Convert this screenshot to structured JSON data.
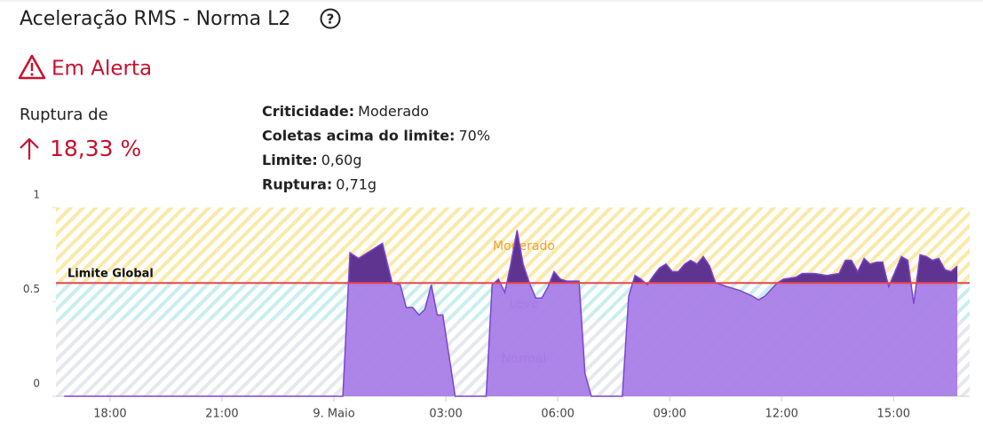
{
  "title": "Aceleração RMS - Norma L2",
  "status": "Em Alerta",
  "rupture": {
    "label": "Ruptura de",
    "value": "18,33 %"
  },
  "details": [
    {
      "label": "Criticidade:",
      "value": "Moderado"
    },
    {
      "label": "Coletas acima do limite:",
      "value": "70%"
    },
    {
      "label": "Limite:",
      "value": "0,60g"
    },
    {
      "label": "Ruptura:",
      "value": "0,71g"
    }
  ],
  "chart_data": {
    "type": "area",
    "x": [
      16.77,
      24.24,
      24.43,
      24.66,
      25.3,
      25.56,
      25.78,
      25.94,
      26.11,
      26.28,
      26.44,
      26.61,
      26.77,
      26.92,
      27.25,
      28.08,
      28.24,
      28.41,
      28.58,
      28.74,
      28.91,
      29.07,
      29.24,
      29.41,
      29.57,
      29.74,
      29.9,
      30.07,
      30.24,
      30.4,
      30.57,
      30.73,
      30.9,
      31.73,
      31.9,
      32.07,
      32.23,
      32.4,
      32.57,
      32.73,
      32.9,
      33.07,
      33.23,
      33.4,
      33.56,
      33.73,
      33.9,
      34.07,
      34.23,
      34.55,
      34.88,
      35.22,
      35.38,
      35.55,
      35.88,
      36.05,
      36.38,
      36.55,
      36.88,
      37.21,
      37.54,
      37.71,
      37.87,
      38.04,
      38.21,
      38.37,
      38.54,
      38.71,
      38.87,
      39.21,
      39.38,
      39.54,
      39.71,
      39.88,
      40.04,
      40.21,
      40.38,
      40.54,
      40.71
    ],
    "series": [
      {
        "color": "#a97de6",
        "values": [
          0,
          0,
          0.76,
          0.73,
          0.81,
          0.6,
          0.59,
          0.47,
          0.47,
          0.43,
          0.46,
          0.59,
          0.43,
          0.43,
          0,
          0,
          0.59,
          0.62,
          0.55,
          0.7,
          0.88,
          0.7,
          0.6,
          0.52,
          0.52,
          0.58,
          0.66,
          0.62,
          0.61,
          0.61,
          0.61,
          0.12,
          0,
          0,
          0.53,
          0.64,
          0.62,
          0.59,
          0.64,
          0.68,
          0.7,
          0.66,
          0.66,
          0.7,
          0.72,
          0.7,
          0.74,
          0.69,
          0.6,
          0.58,
          0.56,
          0.53,
          0.51,
          0.53,
          0.6,
          0.62,
          0.63,
          0.65,
          0.65,
          0.64,
          0.65,
          0.72,
          0.72,
          0.66,
          0.73,
          0.7,
          0.71,
          0.71,
          0.58,
          0.74,
          0.72,
          0.49,
          0.75,
          0.74,
          0.72,
          0.73,
          0.67,
          0.66,
          0.69
        ]
      }
    ],
    "above_color": "#5e3490",
    "xlim": [
      16.55,
      41.04
    ],
    "xticks": [
      {
        "value": 18,
        "label": "18:00"
      },
      {
        "value": 21,
        "label": "21:00"
      },
      {
        "value": 24,
        "label": "9. Maio"
      },
      {
        "value": 27,
        "label": "03:00"
      },
      {
        "value": 30,
        "label": "06:00"
      },
      {
        "value": 33,
        "label": "09:00"
      },
      {
        "value": 36,
        "label": "12:00"
      },
      {
        "value": 39,
        "label": "15:00"
      }
    ],
    "ylim": [
      0,
      1
    ],
    "yticks": [
      0,
      0.5,
      1
    ],
    "bands": [
      {
        "name": "Normal",
        "from": 0,
        "to": 0.4,
        "color": "#e6e8ee",
        "label_color": "#7a55c9"
      },
      {
        "name": "Leve",
        "from": 0.4,
        "to": 0.6,
        "color": "#c9eef0",
        "label_color": "#6b6fd0"
      },
      {
        "name": "Moderado",
        "from": 0.6,
        "to": 1,
        "color": "#fbe9a8",
        "label_color": "#f0a030"
      }
    ],
    "limit": {
      "label": "Limite Global",
      "value": 0.6,
      "color": "#e8474c"
    }
  }
}
